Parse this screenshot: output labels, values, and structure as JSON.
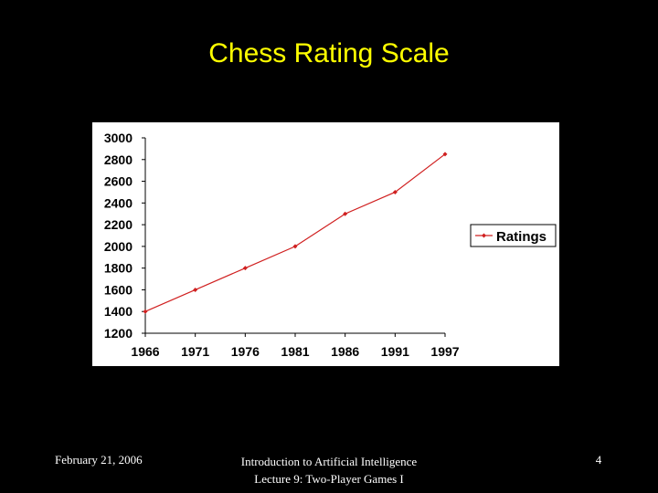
{
  "slide": {
    "title": "Chess Rating Scale",
    "footer_date": "February 21, 2006",
    "footer_course_line1": "Introduction to Artificial Intelligence",
    "footer_course_line2": "Lecture 9: Two-Player Games I",
    "page_number": "4"
  },
  "chart_data": {
    "type": "line",
    "title": "",
    "xlabel": "",
    "ylabel": "",
    "categories": [
      "1966",
      "1971",
      "1976",
      "1981",
      "1986",
      "1991",
      "1997"
    ],
    "series": [
      {
        "name": "Ratings",
        "values": [
          1400,
          1600,
          1800,
          2000,
          2300,
          2500,
          2850
        ],
        "color": "#d02020"
      }
    ],
    "yticks": [
      1200,
      1400,
      1600,
      1800,
      2000,
      2200,
      2400,
      2600,
      2800,
      3000
    ],
    "ylim": [
      1200,
      3000
    ],
    "grid": false,
    "legend": "right"
  }
}
